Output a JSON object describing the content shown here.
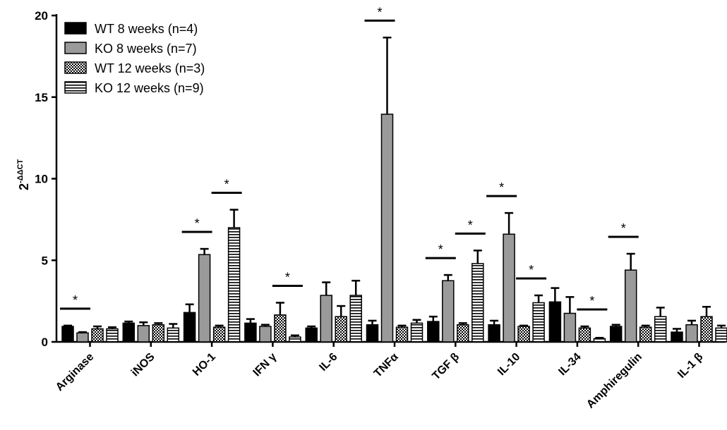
{
  "chart_data": {
    "type": "bar",
    "ylabel": "2",
    "ylabel_sup": "-ΔΔCT",
    "ylim": [
      0,
      20
    ],
    "yticks": [
      "0",
      "5",
      "10",
      "15",
      "20"
    ],
    "categories": [
      "Arginase",
      "iNOS",
      "HO-1",
      "IFN γ",
      "IL-6",
      "TNFα",
      "TGF β",
      "IL-10",
      "IL-34",
      "Amphiregulin",
      "IL-1 β"
    ],
    "legend_position": "top-left",
    "series": [
      {
        "name": "WT 8 weeks (n=4)",
        "pattern": "solid-black",
        "values": [
          0.95,
          1.15,
          1.8,
          1.15,
          0.85,
          1.05,
          1.25,
          1.05,
          2.45,
          0.95,
          0.6
        ],
        "errors": [
          0.05,
          0.1,
          0.5,
          0.25,
          0.1,
          0.25,
          0.3,
          0.25,
          0.85,
          0.1,
          0.2
        ]
      },
      {
        "name": "KO 8 weeks (n=7)",
        "pattern": "solid-gray",
        "values": [
          0.55,
          1.0,
          5.35,
          0.95,
          2.85,
          13.95,
          3.75,
          6.6,
          1.75,
          4.4,
          1.05
        ],
        "errors": [
          0.05,
          0.2,
          0.35,
          0.1,
          0.8,
          4.7,
          0.35,
          1.3,
          1.0,
          1.0,
          0.25
        ]
      },
      {
        "name": "WT 12 weeks (n=3)",
        "pattern": "checker",
        "values": [
          0.8,
          1.05,
          0.9,
          1.65,
          1.55,
          0.9,
          1.05,
          0.95,
          0.85,
          0.9,
          1.55
        ],
        "errors": [
          0.15,
          0.1,
          0.1,
          0.75,
          0.65,
          0.1,
          0.1,
          0.05,
          0.1,
          0.1,
          0.6
        ]
      },
      {
        "name": "KO 12 weeks (n=9)",
        "pattern": "horizontal-stripes",
        "values": [
          0.8,
          0.85,
          7.0,
          0.3,
          2.85,
          1.15,
          4.8,
          2.4,
          0.2,
          1.55,
          0.85
        ],
        "errors": [
          0.1,
          0.25,
          1.1,
          0.1,
          0.9,
          0.2,
          0.8,
          0.45,
          0.05,
          0.55,
          0.15
        ]
      }
    ],
    "significance": [
      {
        "category": 0,
        "pair": [
          0,
          1
        ],
        "label": "*"
      },
      {
        "category": 2,
        "pair": [
          0,
          1
        ],
        "label": "*"
      },
      {
        "category": 2,
        "pair": [
          2,
          3
        ],
        "label": "*"
      },
      {
        "category": 3,
        "pair": [
          2,
          3
        ],
        "label": "*"
      },
      {
        "category": 5,
        "pair": [
          0,
          1
        ],
        "label": "*"
      },
      {
        "category": 6,
        "pair": [
          0,
          1
        ],
        "label": "*"
      },
      {
        "category": 6,
        "pair": [
          2,
          3
        ],
        "label": "*"
      },
      {
        "category": 7,
        "pair": [
          0,
          1
        ],
        "label": "*"
      },
      {
        "category": 7,
        "pair": [
          2,
          3
        ],
        "label": "*"
      },
      {
        "category": 8,
        "pair": [
          2,
          3
        ],
        "label": "*"
      },
      {
        "category": 9,
        "pair": [
          0,
          1
        ],
        "label": "*"
      }
    ]
  }
}
